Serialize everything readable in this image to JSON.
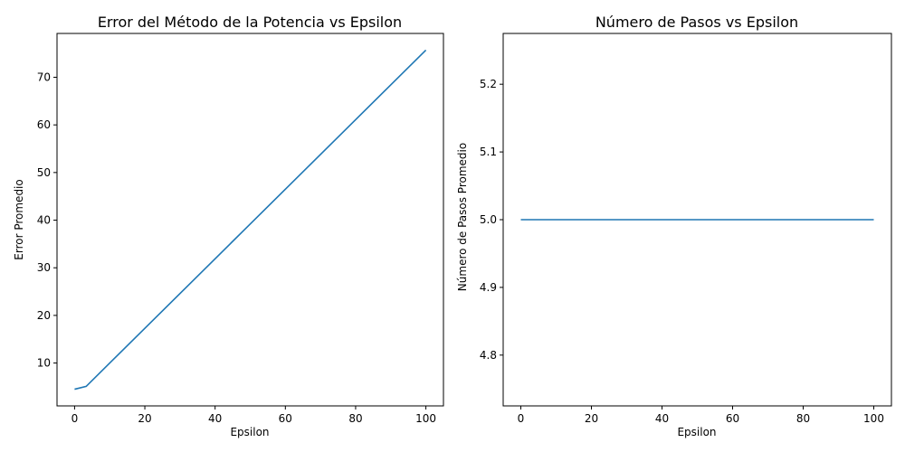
{
  "chart_data": [
    {
      "type": "line",
      "title": "Error del Método de la Potencia vs Epsilon",
      "xlabel": "Epsilon",
      "ylabel": "Error Promedio",
      "xlim": [
        -5,
        105
      ],
      "ylim": [
        1.0,
        79.2
      ],
      "xticks": [
        0,
        20,
        40,
        60,
        80,
        100
      ],
      "xtick_labels": [
        "0",
        "20",
        "40",
        "60",
        "80",
        "100"
      ],
      "yticks": [
        10,
        20,
        30,
        40,
        50,
        60,
        70
      ],
      "ytick_labels": [
        "10",
        "20",
        "30",
        "40",
        "50",
        "60",
        "70"
      ],
      "grid": false,
      "color": "#1f77b4",
      "series": [
        {
          "x": [
            0,
            3.3,
            100
          ],
          "y": [
            4.5,
            5.1,
            75.7
          ]
        }
      ]
    },
    {
      "type": "line",
      "title": "Número de Pasos vs Epsilon",
      "xlabel": "Epsilon",
      "ylabel": "Número de Pasos Promedio",
      "xlim": [
        -5,
        105
      ],
      "ylim": [
        4.725,
        5.275
      ],
      "xticks": [
        0,
        20,
        40,
        60,
        80,
        100
      ],
      "xtick_labels": [
        "0",
        "20",
        "40",
        "60",
        "80",
        "100"
      ],
      "yticks": [
        4.8,
        4.9,
        5.0,
        5.1,
        5.2
      ],
      "ytick_labels": [
        "4.8",
        "4.9",
        "5.0",
        "5.1",
        "5.2"
      ],
      "grid": false,
      "color": "#1f77b4",
      "series": [
        {
          "x": [
            0,
            100
          ],
          "y": [
            5.0,
            5.0
          ]
        }
      ]
    }
  ]
}
